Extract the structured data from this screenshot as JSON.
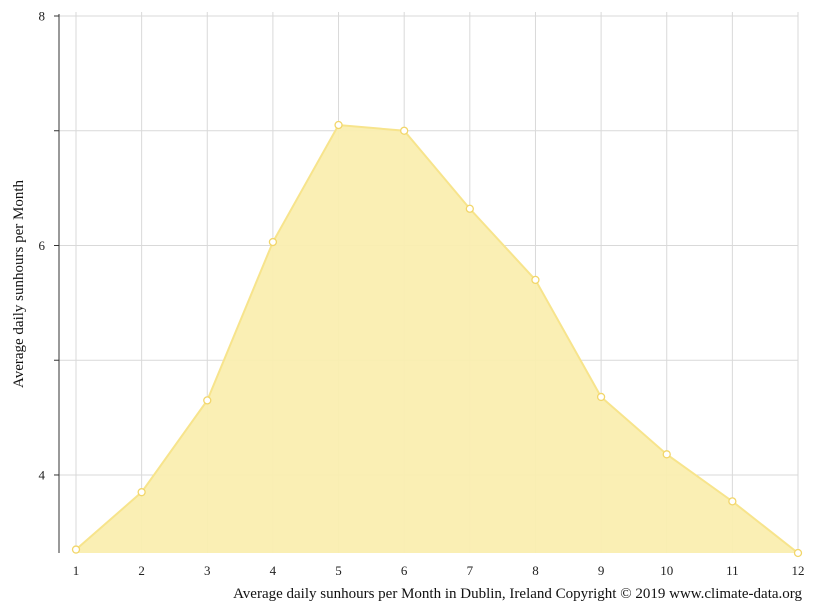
{
  "chart_data": {
    "type": "area",
    "x": [
      1,
      2,
      3,
      4,
      5,
      6,
      7,
      8,
      9,
      10,
      11,
      12
    ],
    "values": [
      3.35,
      3.85,
      4.65,
      6.03,
      7.05,
      7.0,
      6.32,
      5.7,
      4.68,
      4.18,
      3.77,
      3.32
    ],
    "xticks": [
      "1",
      "2",
      "3",
      "4",
      "5",
      "6",
      "7",
      "8",
      "9",
      "10",
      "11",
      "12"
    ],
    "yticks": [
      4,
      6,
      8
    ],
    "ytick_labels": [
      "4",
      "6",
      "8"
    ],
    "ylabel": "Average daily sunhours per Month",
    "xlabel": "Average daily sunhours per Month in Dublin, Ireland Copyright © 2019 www.climate-data.org",
    "ylim": [
      3.32,
      8.0
    ],
    "xlim": [
      1,
      12
    ],
    "grid": true,
    "colors": {
      "fill": "#faeeb0",
      "line": "#f7e48c",
      "marker": "#f2d66a",
      "grid": "#d9d9d9",
      "axis": "#333333"
    }
  }
}
